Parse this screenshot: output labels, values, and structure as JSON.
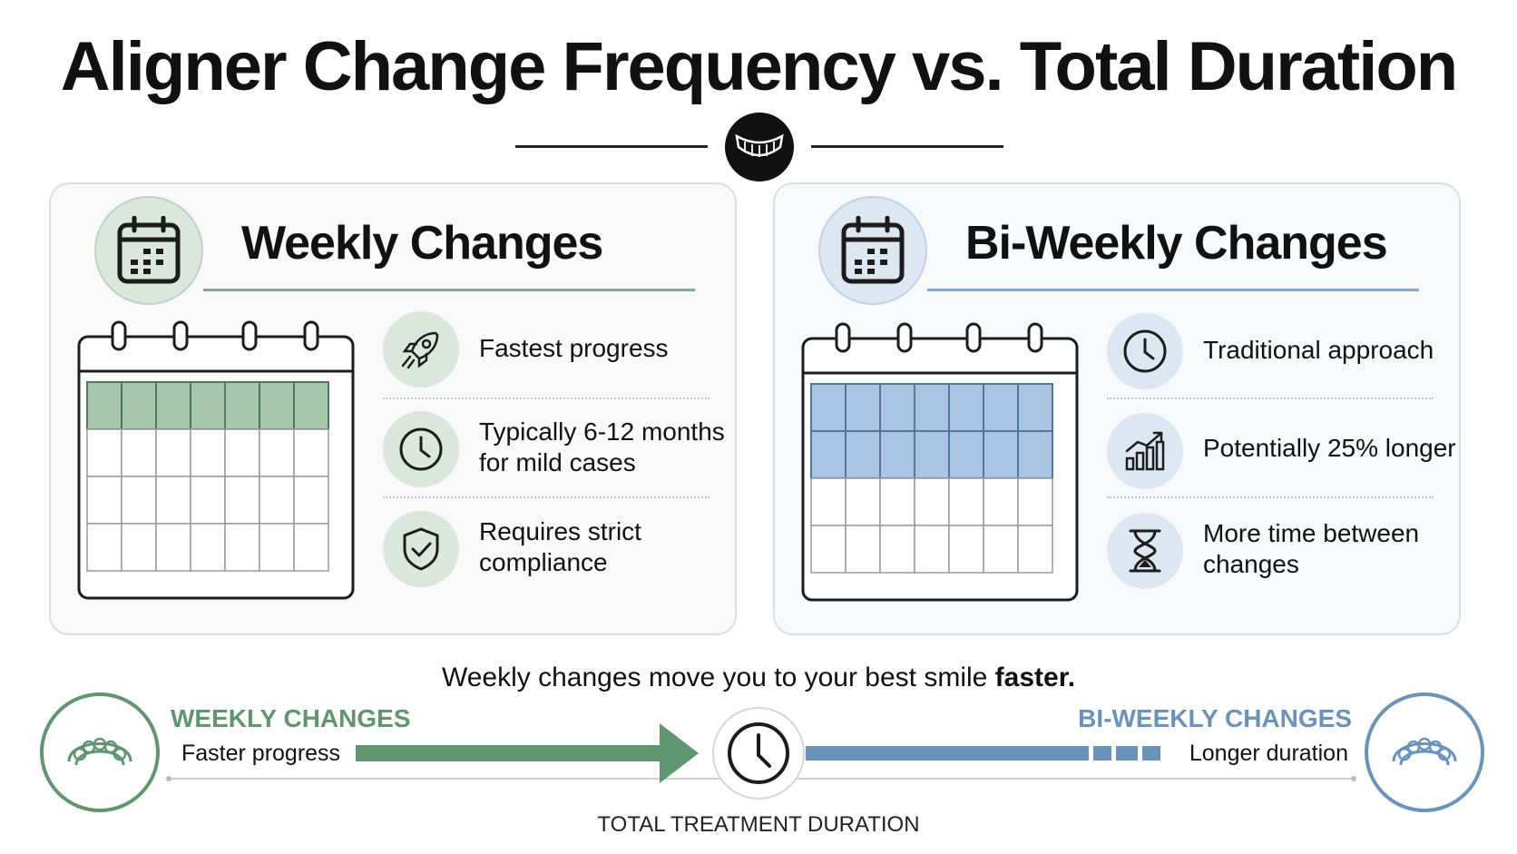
{
  "title": "Aligner Change Frequency vs. Total Duration",
  "colors": {
    "weekly": "#5f9670",
    "weekly_light": "#dbe7dd",
    "weekly_cell": "#a6c7ad",
    "biweekly": "#6a93bb",
    "biweekly_light": "#dce7f1",
    "biweekly_cell": "#a9c5e2"
  },
  "panels": {
    "weekly": {
      "title": "Weekly Changes",
      "header_icon": "calendar-icon",
      "highlighted_rows": 1,
      "features": [
        {
          "icon": "rocket-icon",
          "lines": [
            "Fastest progress"
          ]
        },
        {
          "icon": "clock-icon",
          "lines": [
            "Typically 6-12 months",
            "for mild cases"
          ]
        },
        {
          "icon": "shield-check-icon",
          "lines": [
            "Requires strict",
            "compliance"
          ]
        }
      ]
    },
    "biweekly": {
      "title": "Bi-Weekly Changes",
      "header_icon": "calendar-icon",
      "highlighted_rows": 2,
      "features": [
        {
          "icon": "clock-icon",
          "lines": [
            "Traditional approach"
          ]
        },
        {
          "icon": "growth-chart-icon",
          "lines": [
            "Potentially 25% longer"
          ]
        },
        {
          "icon": "hourglass-icon",
          "lines": [
            "More time between",
            "changes"
          ]
        }
      ]
    }
  },
  "tagline": {
    "prefix": "Weekly changes move you to your best smile ",
    "emphasis": "faster."
  },
  "comparison": {
    "left_label": "WEEKLY CHANGES",
    "left_sub": "Faster progress",
    "right_label": "BI-WEEKLY CHANGES",
    "right_sub": "Longer duration",
    "axis_label": "TOTAL TREATMENT DURATION",
    "center_icon": "clock-icon",
    "end_icon": "aligner-icon"
  }
}
